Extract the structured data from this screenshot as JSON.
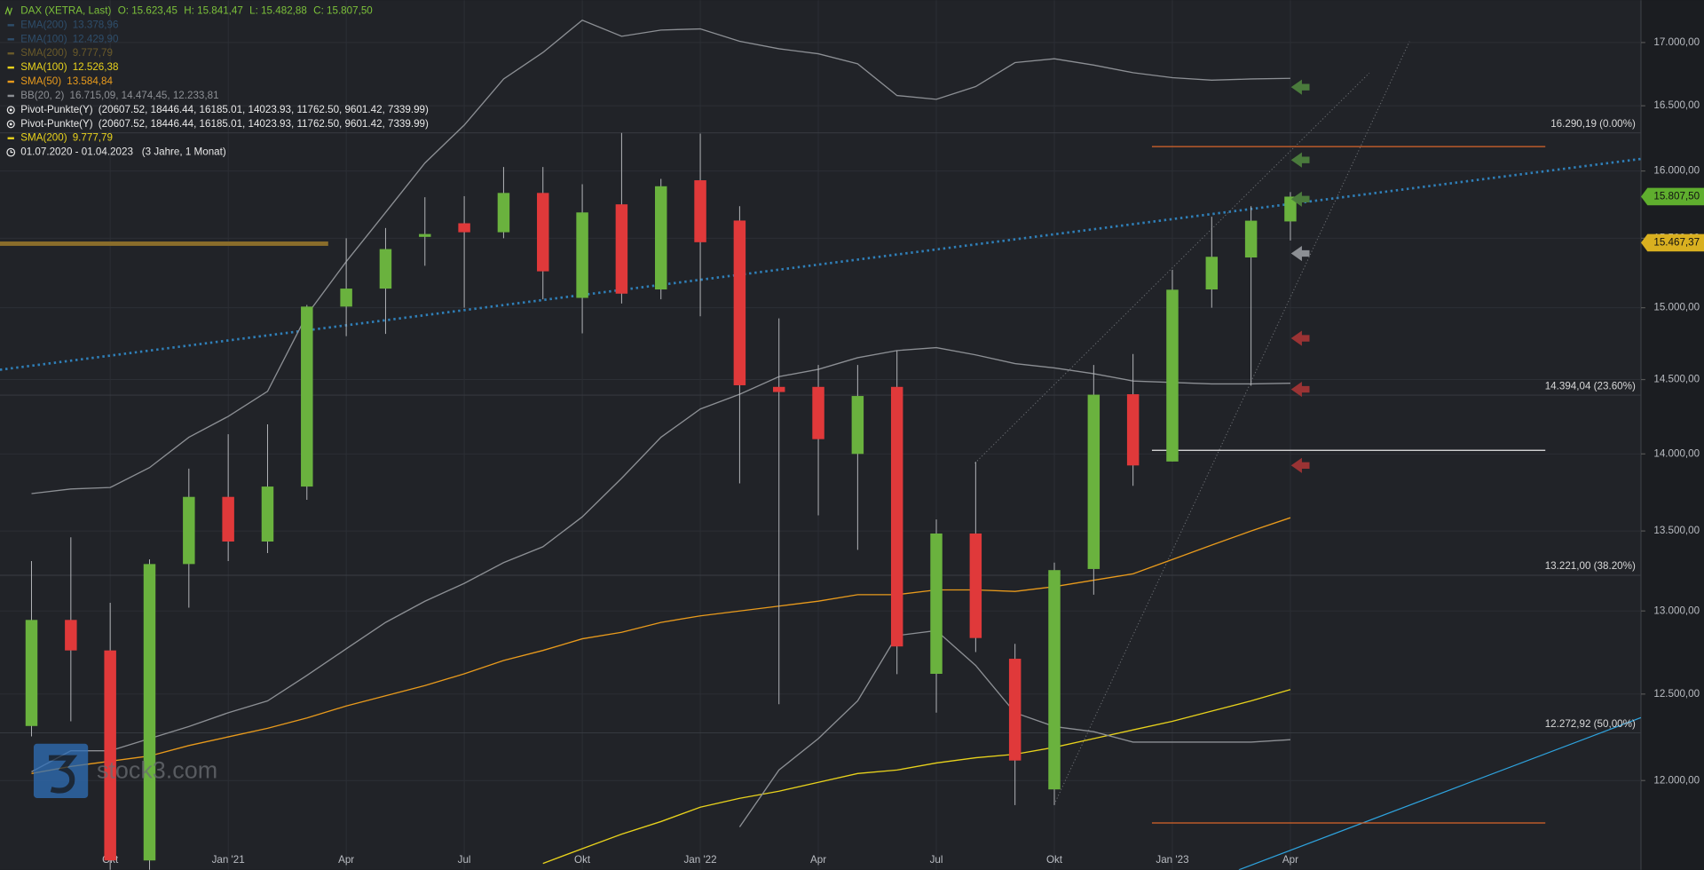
{
  "chart_data": {
    "type": "candlestick",
    "title": "DAX (XETRA, Last)",
    "header_values": [
      "O: 15.623,45",
      "H: 15.841,47",
      "L: 15.482,88",
      "C: 15.807,50"
    ],
    "log_scale": true,
    "grid": true,
    "up_color": "#6ab23e",
    "down_color": "#e0393a",
    "categories": [
      null,
      null,
      "Okt",
      null,
      null,
      "Jan '21",
      null,
      null,
      "Apr",
      null,
      null,
      "Jul",
      null,
      null,
      "Okt",
      null,
      null,
      "Jan '22",
      null,
      null,
      "Apr",
      null,
      null,
      "Jul",
      null,
      null,
      "Okt",
      null,
      null,
      "Jan '23",
      null,
      null,
      "Apr"
    ],
    "open": [
      12313,
      12945,
      12760,
      11556,
      13291,
      13719,
      13433,
      13786,
      15008,
      15136,
      15510,
      15610,
      15544,
      15835,
      15070,
      15750,
      15130,
      15930,
      15630,
      14450,
      14450,
      14000,
      14450,
      12620,
      13484,
      12710,
      11950,
      13260,
      14400,
      13950,
      15130,
      15360,
      15623.45
    ],
    "high": [
      13310,
      13460,
      13050,
      13320,
      13903,
      14131,
      14197,
      15020,
      15500,
      15575,
      15803,
      15811,
      16030,
      16030,
      15900,
      16290,
      15940,
      16285,
      15736,
      14925,
      14600,
      14600,
      14700,
      13574,
      13948,
      12800,
      13300,
      14600,
      14676,
      15270,
      15658,
      15736,
      15841.47
    ],
    "low": [
      12253,
      12340,
      11450,
      11500,
      13020,
      13310,
      13360,
      13700,
      14800,
      14816,
      15300,
      15000,
      15500,
      15060,
      14820,
      15030,
      15060,
      14940,
      13807,
      12440,
      13600,
      13380,
      12618,
      12391,
      12750,
      11862,
      11862,
      13100,
      13791,
      13950,
      15000,
      14458,
      15482.88
    ],
    "close": [
      12945,
      12760,
      11556,
      13291,
      13719,
      13433,
      13786,
      15008,
      15136,
      15421,
      15531,
      15544,
      15835,
      15260,
      15690,
      15100,
      15885,
      15471,
      14461,
      14415,
      14098,
      14388,
      12784,
      13484,
      12835,
      12114,
      13253,
      14397,
      13924,
      15128,
      15365,
      15629,
      15807.5
    ],
    "ylim": [
      11505,
      17343
    ],
    "yticks": [
      {
        "value": 12000,
        "label": "12.000,00"
      },
      {
        "value": 12500,
        "label": "12.500,00"
      },
      {
        "value": 13000,
        "label": "13.000,00"
      },
      {
        "value": 13500,
        "label": "13.500,00"
      },
      {
        "value": 14000,
        "label": "14.000,00"
      },
      {
        "value": 14500,
        "label": "14.500,00"
      },
      {
        "value": 15000,
        "label": "15.000,00"
      },
      {
        "value": 15500,
        "label": "15.500,00"
      },
      {
        "value": 16000,
        "label": "16.000,00"
      },
      {
        "value": 16500,
        "label": "16.500,00"
      },
      {
        "value": 17000,
        "label": "17.000,00"
      }
    ],
    "indicators": [
      {
        "name": "EMA(200)",
        "value": "13.378,96",
        "color": "#2e4d6a"
      },
      {
        "name": "EMA(100)",
        "value": "12.429,90",
        "color": "#2e4d6a"
      },
      {
        "name": "SMA(200)",
        "value": "9.777,79",
        "color": "#6a5a2a"
      },
      {
        "name": "SMA(100)",
        "value": "12.526,38",
        "color": "#e8d21c",
        "lines": [
          [
            null,
            null,
            null,
            null,
            null,
            null,
            null,
            null,
            null,
            null,
            null,
            null,
            null,
            11540,
            11620,
            11700,
            11770,
            11850,
            11900,
            11940,
            11990,
            12040,
            12060,
            12100,
            12130,
            12150,
            12190,
            12240,
            12290,
            12340,
            12400,
            12460,
            12526.38
          ]
        ]
      },
      {
        "name": "SMA(50)",
        "value": "13.584,84",
        "color": "#e89a1c",
        "lines": [
          [
            12040,
            12080,
            12110,
            12140,
            12200,
            12250,
            12300,
            12360,
            12430,
            12490,
            12550,
            12620,
            12700,
            12760,
            12830,
            12870,
            12930,
            12970,
            13000,
            13030,
            13060,
            13100,
            13100,
            13130,
            13130,
            13120,
            13150,
            13190,
            13230,
            13320,
            13410,
            13500,
            13584.84
          ]
        ]
      },
      {
        "name": "BB(20, 2)",
        "value": "16.715,09, 14.474,45, 12.233,81",
        "color": "#8c8f94",
        "lines": [
          [
            13740,
            13770,
            13780,
            13910,
            14110,
            14250,
            14420,
            14950,
            15330,
            15690,
            16060,
            16350,
            16710,
            16920,
            17180,
            17050,
            17100,
            17110,
            17010,
            16950,
            16910,
            16830,
            16580,
            16550,
            16650,
            16840,
            16870,
            16820,
            16760,
            16720,
            16700,
            16710,
            16715.09
          ],
          [
            12050,
            12170,
            12170,
            12240,
            12310,
            12390,
            12460,
            12610,
            12770,
            12930,
            13060,
            13170,
            13300,
            13400,
            13590,
            13840,
            14110,
            14300,
            14400,
            14520,
            14570,
            14650,
            14700,
            14720,
            14670,
            14610,
            14580,
            14540,
            14490,
            14480,
            14470,
            14470,
            14474.45
          ],
          [
            null,
            null,
            null,
            null,
            null,
            null,
            null,
            null,
            null,
            null,
            null,
            null,
            null,
            null,
            null,
            null,
            null,
            null,
            11740,
            12060,
            12240,
            12460,
            12850,
            12880,
            12670,
            12390,
            12310,
            12280,
            12220,
            12220,
            12220,
            12220,
            12233.81
          ]
        ]
      },
      {
        "name": "Pivot-Punkte(Y)",
        "value": "(20607.52,  18446.44,  16185.01,  14023.93,  11762.50,  9601.42,  7339.99)",
        "color": "#e8e8e8",
        "levels": [
          20607.52,
          18446.44,
          16185.01,
          14023.93,
          11762.5,
          9601.42,
          7339.99
        ],
        "level_colors": [
          "#d9662a",
          "#d9662a",
          "#d9662a",
          "#e8e8e8",
          "#d9662a",
          "#d9662a",
          "#d9662a"
        ]
      },
      {
        "name": "Pivot-Punkte(Y)",
        "value": "(20607.52,  18446.44,  16185.01,  14023.93,  11762.50,  9601.42,  7339.99)",
        "color": "#e8e8e8"
      },
      {
        "name": "SMA(200)",
        "value": "9.777,79",
        "color": "#e8d21c"
      }
    ],
    "period": [
      "01.07.2020 - 01.04.2023",
      "(3 Jahre, 1 Monat)"
    ],
    "fib_levels": [
      {
        "value": 16290.19,
        "label": "16.290,19 (0.00%)"
      },
      {
        "value": 14394.04,
        "label": "14.394,04 (23.60%)"
      },
      {
        "value": 13221.0,
        "label": "13.221,00 (38.20%)"
      },
      {
        "value": 12272.92,
        "label": "12.272,92 (50,00%)"
      }
    ],
    "price_labels": [
      {
        "value": 15807.5,
        "label": "15.807,50",
        "color": "#5fae2e"
      },
      {
        "value": 15467.37,
        "label": "15.467,37",
        "color": "#d9b020"
      }
    ],
    "watermark": "stock3.com"
  }
}
